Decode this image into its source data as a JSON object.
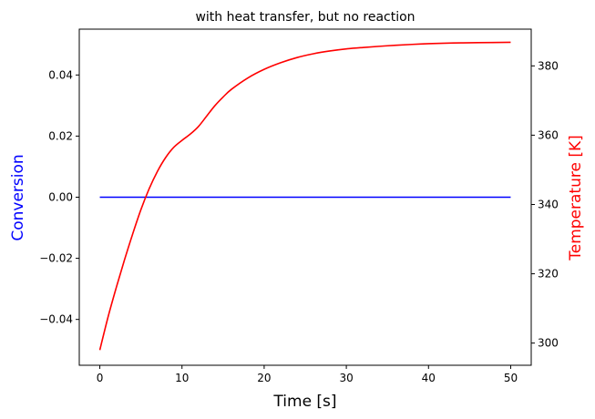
{
  "chart_data": {
    "type": "line",
    "title": "with heat transfer, but no reaction",
    "xlabel": "Time [s]",
    "ylabel_left": "Conversion",
    "ylabel_right": "Temperature [K]",
    "colors": {
      "left": "#0000ff",
      "right": "#ff0000",
      "axis": "#000000"
    },
    "xlim": [
      -2.5,
      52.5
    ],
    "ylim_left": [
      -0.055,
      0.055
    ],
    "ylim_right": [
      293.6,
      390.6
    ],
    "grid": false,
    "x_ticks": [
      0,
      10,
      20,
      30,
      40,
      50
    ],
    "x_tick_labels": [
      "0",
      "10",
      "20",
      "30",
      "40",
      "50"
    ],
    "y_left_ticks": [
      -0.04,
      -0.02,
      0.0,
      0.02,
      0.04
    ],
    "y_left_tick_labels": [
      "−0.04",
      "−0.02",
      "0.00",
      "0.02",
      "0.04"
    ],
    "y_right_ticks": [
      300,
      320,
      340,
      360,
      380
    ],
    "y_right_tick_labels": [
      "300",
      "320",
      "340",
      "360",
      "380"
    ],
    "series": [
      {
        "axis": "left",
        "x": [
          0,
          50
        ],
        "y": [
          0.0,
          0.0
        ]
      },
      {
        "axis": "right",
        "x": [
          0,
          1,
          2,
          3,
          4,
          5,
          6,
          7,
          8,
          9,
          10,
          11,
          12,
          13,
          14,
          15,
          16,
          18,
          20,
          22,
          24,
          26,
          28,
          30,
          32,
          35,
          38,
          40,
          43,
          46,
          50
        ],
        "y": [
          298,
          307.5,
          316,
          324,
          331.5,
          338.5,
          344.5,
          349.5,
          353.5,
          356.5,
          358.5,
          360.3,
          362.5,
          365.5,
          368.5,
          371,
          373.2,
          376.5,
          379,
          380.9,
          382.4,
          383.5,
          384.3,
          384.9,
          385.3,
          385.8,
          386.2,
          386.4,
          386.6,
          386.7,
          386.8
        ]
      }
    ]
  }
}
